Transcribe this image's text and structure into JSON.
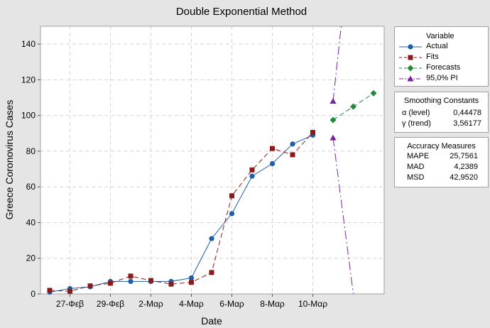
{
  "chart_data": {
    "type": "line",
    "title": "Double Exponential Method",
    "xlabel": "Date",
    "ylabel": "Greece Coronovirus Cases",
    "ylim": [
      0,
      150
    ],
    "y_ticks": [
      0,
      20,
      40,
      60,
      80,
      100,
      120,
      140
    ],
    "x_tick_labels": [
      {
        "index": 2,
        "label": "27-Φεβ"
      },
      {
        "index": 4,
        "label": "29-Φεβ"
      },
      {
        "index": 6,
        "label": "2-Μαρ"
      },
      {
        "index": 8,
        "label": "4-Μαρ"
      },
      {
        "index": 10,
        "label": "6-Μαρ"
      },
      {
        "index": 12,
        "label": "8-Μαρ"
      },
      {
        "index": 14,
        "label": "10-Μαρ"
      }
    ],
    "grid": true,
    "legend_title": "Variable",
    "series": [
      {
        "name": "Actual",
        "color": "#1f5fa8",
        "marker": "circle",
        "line": "solid",
        "points": [
          [
            1,
            1
          ],
          [
            2,
            3
          ],
          [
            3,
            4
          ],
          [
            4,
            7
          ],
          [
            5,
            7
          ],
          [
            6,
            7
          ],
          [
            7,
            7
          ],
          [
            8,
            9
          ],
          [
            9,
            31
          ],
          [
            10,
            45
          ],
          [
            11,
            66
          ],
          [
            12,
            73
          ],
          [
            13,
            84
          ],
          [
            14,
            89
          ]
        ]
      },
      {
        "name": "Fits",
        "color": "#8b1a1a",
        "marker": "square",
        "line": "dashed",
        "points": [
          [
            1,
            2
          ],
          [
            2,
            1.5
          ],
          [
            3,
            4.5
          ],
          [
            4,
            6
          ],
          [
            5,
            10
          ],
          [
            6,
            7.5
          ],
          [
            7,
            5.5
          ],
          [
            8,
            6.5
          ],
          [
            9,
            12
          ],
          [
            10,
            55
          ],
          [
            11,
            69.5
          ],
          [
            12,
            81.5
          ],
          [
            13,
            78
          ],
          [
            14,
            90.5
          ]
        ]
      },
      {
        "name": "Forecasts",
        "color": "#1e8a3c",
        "marker": "diamond",
        "line": "dashed",
        "points": [
          [
            15,
            97.5
          ],
          [
            16,
            105
          ],
          [
            17,
            112.5
          ]
        ]
      },
      {
        "name": "95,0% PI",
        "color": "#7b1fa2",
        "marker": "triangle",
        "line": "dashdot",
        "upper": [
          [
            15,
            108
          ],
          [
            15.4,
            150
          ]
        ],
        "lower": [
          [
            15,
            87.5
          ],
          [
            16,
            0
          ]
        ]
      }
    ]
  },
  "smoothing": {
    "title": "Smoothing Constants",
    "rows": [
      {
        "label": "α (level)",
        "value": "0,44478"
      },
      {
        "label": "γ (trend)",
        "value": "3,56177"
      }
    ]
  },
  "accuracy": {
    "title": "Accuracy Measures",
    "rows": [
      {
        "label": "MAPE",
        "value": "25,7561"
      },
      {
        "label": "MAD",
        "value": "4,2389"
      },
      {
        "label": "MSD",
        "value": "42,9520"
      }
    ]
  }
}
